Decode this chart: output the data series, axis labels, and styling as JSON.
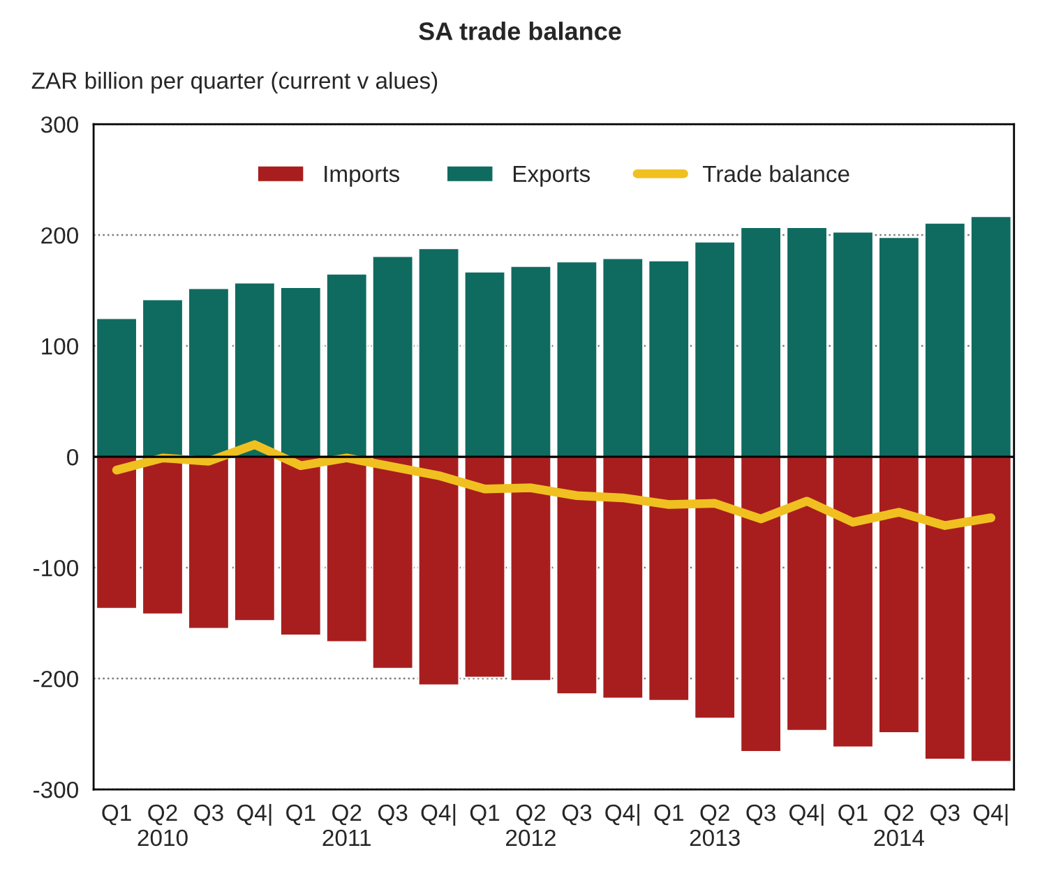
{
  "chart_data": {
    "type": "bar",
    "title": "SA trade balance",
    "ylabel": "ZAR billion per quarter (current v alues)",
    "categories": [
      "Q1",
      "Q2\n2010",
      "Q3",
      "Q4|",
      "Q1",
      "Q2\n2011",
      "Q3",
      "Q4|",
      "Q1",
      "Q2\n2012",
      "Q3",
      "Q4|",
      "Q1",
      "Q2\n2013",
      "Q3",
      "Q4|",
      "Q1",
      "Q2\n2014",
      "Q3",
      "Q4|"
    ],
    "series": [
      {
        "name": "Imports",
        "color": "#a81e1e",
        "values": [
          -137,
          -142,
          -155,
          -148,
          -161,
          -167,
          -191,
          -206,
          -199,
          -202,
          -214,
          -218,
          -220,
          -236,
          -266,
          -247,
          -262,
          -249,
          -273,
          -275
        ]
      },
      {
        "name": "Exports",
        "color": "#0f6b5f",
        "values": [
          125,
          142,
          152,
          157,
          153,
          165,
          181,
          188,
          167,
          172,
          176,
          179,
          177,
          194,
          207,
          207,
          203,
          198,
          211,
          217
        ]
      },
      {
        "name": "Trade balance",
        "type": "line",
        "color": "#f0c020",
        "values": [
          -12,
          -1,
          -4,
          11,
          -8,
          -1,
          -9,
          -17,
          -29,
          -28,
          -35,
          -37,
          -43,
          -42,
          -56,
          -40,
          -59,
          -50,
          -62,
          -55
        ]
      }
    ],
    "ylim": [
      -300,
      300
    ],
    "yticks": [
      -300,
      -200,
      -100,
      0,
      100,
      200,
      300
    ],
    "stacked": true,
    "grid": "y",
    "legend": "top",
    "marker": "none",
    "line_style": "solid"
  }
}
